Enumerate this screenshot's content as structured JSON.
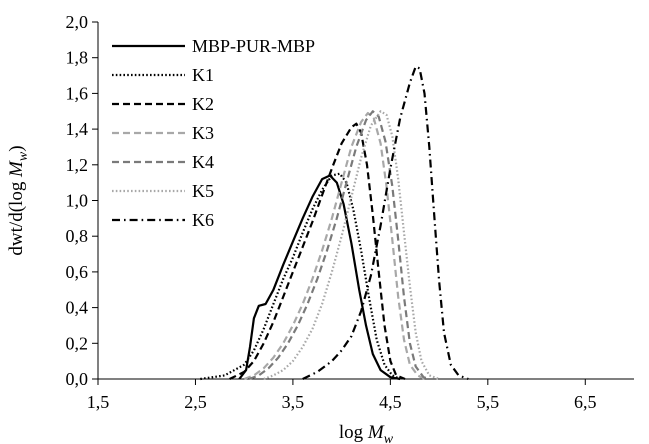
{
  "chart_data": {
    "type": "line",
    "xlabel": "log Mw",
    "xlabel_parts": {
      "base": "log ",
      "var": "M",
      "sub": "w"
    },
    "ylabel": "dwt/d(log Mw)",
    "ylabel_parts": {
      "pre": "dwt/d(log ",
      "var": "M",
      "sub": "w",
      "post": ")"
    },
    "xlim": [
      1.5,
      7.0
    ],
    "ylim": [
      0.0,
      2.0
    ],
    "x_ticks": [
      1.5,
      2.5,
      3.5,
      4.5,
      5.5,
      6.5
    ],
    "x_tick_labels": [
      "1,5",
      "2,5",
      "3,5",
      "4,5",
      "5,5",
      "6,5"
    ],
    "y_ticks": [
      0.0,
      0.2,
      0.4,
      0.6,
      0.8,
      1.0,
      1.2,
      1.4,
      1.6,
      1.8,
      2.0
    ],
    "y_tick_labels": [
      "0,0",
      "0,2",
      "0,4",
      "0,6",
      "0,8",
      "1,0",
      "1,2",
      "1,4",
      "1,6",
      "1,8",
      "2,0"
    ],
    "grid": false,
    "legend_position": "top-left",
    "series": [
      {
        "name": "MBP-PUR-MBP",
        "color": "#000000",
        "dash": "solid",
        "points": [
          [
            2.95,
            0.0
          ],
          [
            3.02,
            0.05
          ],
          [
            3.06,
            0.18
          ],
          [
            3.1,
            0.34
          ],
          [
            3.15,
            0.41
          ],
          [
            3.22,
            0.42
          ],
          [
            3.3,
            0.5
          ],
          [
            3.4,
            0.64
          ],
          [
            3.5,
            0.77
          ],
          [
            3.6,
            0.9
          ],
          [
            3.7,
            1.02
          ],
          [
            3.8,
            1.12
          ],
          [
            3.88,
            1.14
          ],
          [
            3.95,
            1.1
          ],
          [
            4.02,
            0.98
          ],
          [
            4.1,
            0.76
          ],
          [
            4.18,
            0.5
          ],
          [
            4.25,
            0.3
          ],
          [
            4.32,
            0.14
          ],
          [
            4.4,
            0.05
          ],
          [
            4.5,
            0.01
          ],
          [
            4.6,
            0.0
          ]
        ]
      },
      {
        "name": "K1",
        "color": "#000000",
        "dash": "dotted",
        "points": [
          [
            2.55,
            0.0
          ],
          [
            2.8,
            0.02
          ],
          [
            3.0,
            0.08
          ],
          [
            3.1,
            0.16
          ],
          [
            3.2,
            0.28
          ],
          [
            3.3,
            0.42
          ],
          [
            3.4,
            0.56
          ],
          [
            3.5,
            0.68
          ],
          [
            3.6,
            0.82
          ],
          [
            3.7,
            0.95
          ],
          [
            3.8,
            1.06
          ],
          [
            3.9,
            1.14
          ],
          [
            3.98,
            1.15
          ],
          [
            4.05,
            1.1
          ],
          [
            4.12,
            0.95
          ],
          [
            4.2,
            0.72
          ],
          [
            4.28,
            0.46
          ],
          [
            4.36,
            0.22
          ],
          [
            4.44,
            0.08
          ],
          [
            4.52,
            0.02
          ],
          [
            4.6,
            0.0
          ]
        ]
      },
      {
        "name": "K2",
        "color": "#000000",
        "dash": "dashed",
        "points": [
          [
            2.85,
            0.0
          ],
          [
            3.0,
            0.04
          ],
          [
            3.1,
            0.1
          ],
          [
            3.2,
            0.2
          ],
          [
            3.3,
            0.32
          ],
          [
            3.4,
            0.46
          ],
          [
            3.5,
            0.6
          ],
          [
            3.6,
            0.74
          ],
          [
            3.7,
            0.88
          ],
          [
            3.8,
            1.03
          ],
          [
            3.9,
            1.18
          ],
          [
            4.0,
            1.32
          ],
          [
            4.1,
            1.41
          ],
          [
            4.15,
            1.43
          ],
          [
            4.2,
            1.38
          ],
          [
            4.26,
            1.2
          ],
          [
            4.32,
            0.92
          ],
          [
            4.38,
            0.6
          ],
          [
            4.44,
            0.3
          ],
          [
            4.5,
            0.1
          ],
          [
            4.56,
            0.02
          ],
          [
            4.65,
            0.0
          ]
        ]
      },
      {
        "name": "K3",
        "color": "#a8a8a8",
        "dash": "dashed",
        "points": [
          [
            3.0,
            0.0
          ],
          [
            3.1,
            0.02
          ],
          [
            3.2,
            0.06
          ],
          [
            3.3,
            0.12
          ],
          [
            3.4,
            0.2
          ],
          [
            3.5,
            0.3
          ],
          [
            3.6,
            0.42
          ],
          [
            3.7,
            0.56
          ],
          [
            3.8,
            0.72
          ],
          [
            3.9,
            0.9
          ],
          [
            4.0,
            1.1
          ],
          [
            4.1,
            1.3
          ],
          [
            4.2,
            1.44
          ],
          [
            4.27,
            1.49
          ],
          [
            4.33,
            1.46
          ],
          [
            4.4,
            1.32
          ],
          [
            4.46,
            1.08
          ],
          [
            4.52,
            0.78
          ],
          [
            4.58,
            0.46
          ],
          [
            4.64,
            0.22
          ],
          [
            4.7,
            0.08
          ],
          [
            4.78,
            0.02
          ],
          [
            4.85,
            0.0
          ]
        ]
      },
      {
        "name": "K4",
        "color": "#7a7a7a",
        "dash": "dashed",
        "points": [
          [
            3.05,
            0.0
          ],
          [
            3.15,
            0.02
          ],
          [
            3.25,
            0.06
          ],
          [
            3.35,
            0.12
          ],
          [
            3.45,
            0.2
          ],
          [
            3.55,
            0.3
          ],
          [
            3.65,
            0.42
          ],
          [
            3.75,
            0.56
          ],
          [
            3.85,
            0.72
          ],
          [
            3.95,
            0.9
          ],
          [
            4.05,
            1.1
          ],
          [
            4.15,
            1.3
          ],
          [
            4.25,
            1.45
          ],
          [
            4.32,
            1.5
          ],
          [
            4.38,
            1.47
          ],
          [
            4.45,
            1.33
          ],
          [
            4.52,
            1.08
          ],
          [
            4.58,
            0.78
          ],
          [
            4.64,
            0.46
          ],
          [
            4.7,
            0.2
          ],
          [
            4.76,
            0.07
          ],
          [
            4.84,
            0.01
          ],
          [
            4.9,
            0.0
          ]
        ]
      },
      {
        "name": "K5",
        "color": "#a8a8a8",
        "dash": "dotted",
        "points": [
          [
            3.2,
            0.0
          ],
          [
            3.3,
            0.02
          ],
          [
            3.4,
            0.05
          ],
          [
            3.5,
            0.1
          ],
          [
            3.6,
            0.18
          ],
          [
            3.7,
            0.28
          ],
          [
            3.8,
            0.42
          ],
          [
            3.9,
            0.6
          ],
          [
            4.0,
            0.8
          ],
          [
            4.1,
            1.02
          ],
          [
            4.2,
            1.24
          ],
          [
            4.3,
            1.42
          ],
          [
            4.4,
            1.5
          ],
          [
            4.46,
            1.48
          ],
          [
            4.52,
            1.36
          ],
          [
            4.58,
            1.12
          ],
          [
            4.64,
            0.82
          ],
          [
            4.7,
            0.52
          ],
          [
            4.76,
            0.26
          ],
          [
            4.82,
            0.1
          ],
          [
            4.9,
            0.02
          ],
          [
            5.0,
            0.0
          ]
        ]
      },
      {
        "name": "K6",
        "color": "#000000",
        "dash": "dashdot",
        "points": [
          [
            3.6,
            0.0
          ],
          [
            3.75,
            0.04
          ],
          [
            3.9,
            0.1
          ],
          [
            4.0,
            0.16
          ],
          [
            4.1,
            0.24
          ],
          [
            4.2,
            0.38
          ],
          [
            4.3,
            0.58
          ],
          [
            4.4,
            0.86
          ],
          [
            4.5,
            1.18
          ],
          [
            4.6,
            1.46
          ],
          [
            4.7,
            1.66
          ],
          [
            4.76,
            1.75
          ],
          [
            4.8,
            1.74
          ],
          [
            4.85,
            1.6
          ],
          [
            4.9,
            1.3
          ],
          [
            4.95,
            0.92
          ],
          [
            5.0,
            0.55
          ],
          [
            5.05,
            0.26
          ],
          [
            5.12,
            0.08
          ],
          [
            5.2,
            0.02
          ],
          [
            5.3,
            0.0
          ]
        ]
      }
    ]
  }
}
